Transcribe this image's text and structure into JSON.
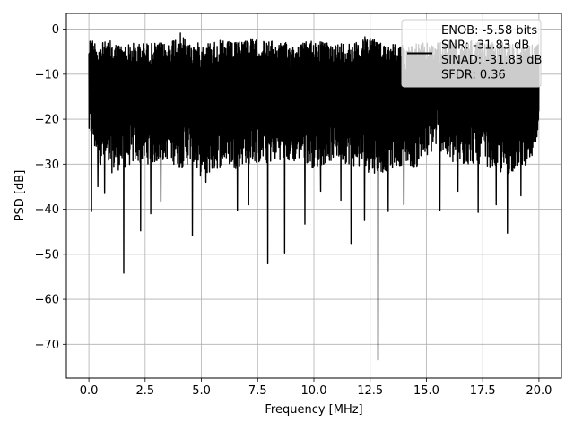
{
  "chart_data": {
    "type": "line",
    "title": "",
    "xlabel": "Frequency [MHz]",
    "ylabel": "PSD [dB]",
    "xlim": [
      -1,
      21
    ],
    "ylim": [
      -77.5,
      3.5
    ],
    "grid": true,
    "legend_position": "top-right",
    "x_ticks": [
      0.0,
      2.5,
      5.0,
      7.5,
      10.0,
      12.5,
      15.0,
      17.5,
      20.0
    ],
    "x_tick_labels": [
      "0.0",
      "2.5",
      "5.0",
      "7.5",
      "10.0",
      "12.5",
      "15.0",
      "17.5",
      "20.0"
    ],
    "y_ticks": [
      0,
      -10,
      -20,
      -30,
      -40,
      -50,
      -60,
      -70
    ],
    "y_tick_labels": [
      "0",
      "−10",
      "−20",
      "−30",
      "−40",
      "−50",
      "−60",
      "−70"
    ],
    "series": [
      {
        "name": "",
        "color": "#000000",
        "x_range": [
          0,
          20
        ],
        "envelope_top": [
          [
            0.0,
            -1.5
          ],
          [
            0.5,
            -3.0
          ],
          [
            1.0,
            -2.5
          ],
          [
            1.5,
            -3.5
          ],
          [
            2.0,
            -3.0
          ],
          [
            2.5,
            -3.0
          ],
          [
            3.0,
            -3.0
          ],
          [
            3.5,
            -3.0
          ],
          [
            4.0,
            -0.5
          ],
          [
            4.5,
            -3.0
          ],
          [
            5.0,
            -3.0
          ],
          [
            5.5,
            -2.5
          ],
          [
            6.0,
            -2.5
          ],
          [
            6.5,
            -3.0
          ],
          [
            7.0,
            -1.5
          ],
          [
            7.5,
            -2.5
          ],
          [
            8.0,
            -2.5
          ],
          [
            8.5,
            -3.0
          ],
          [
            9.0,
            -3.0
          ],
          [
            9.5,
            -3.0
          ],
          [
            10.0,
            -2.0
          ],
          [
            10.5,
            -3.0
          ],
          [
            11.0,
            -3.0
          ],
          [
            11.5,
            -2.5
          ],
          [
            12.0,
            -3.0
          ],
          [
            12.2,
            -0.5
          ],
          [
            12.5,
            -1.0
          ],
          [
            13.0,
            -3.0
          ],
          [
            13.5,
            -3.0
          ],
          [
            14.0,
            -3.5
          ],
          [
            14.5,
            -3.0
          ],
          [
            15.0,
            -3.0
          ],
          [
            15.5,
            -3.0
          ],
          [
            16.0,
            -2.5
          ],
          [
            16.5,
            -3.5
          ],
          [
            17.0,
            -2.0
          ],
          [
            17.5,
            -3.0
          ],
          [
            18.0,
            -3.0
          ],
          [
            18.5,
            -3.0
          ],
          [
            19.0,
            -3.0
          ],
          [
            19.5,
            -3.0
          ],
          [
            20.0,
            -3.0
          ]
        ],
        "envelope_bottom": [
          [
            0.0,
            -25.0
          ],
          [
            0.5,
            -30.0
          ],
          [
            1.0,
            -32.0
          ],
          [
            1.5,
            -31.0
          ],
          [
            2.0,
            -30.0
          ],
          [
            2.5,
            -30.0
          ],
          [
            3.0,
            -30.0
          ],
          [
            3.5,
            -29.0
          ],
          [
            4.0,
            -31.0
          ],
          [
            4.5,
            -30.0
          ],
          [
            5.0,
            -33.0
          ],
          [
            5.5,
            -32.0
          ],
          [
            6.0,
            -30.0
          ],
          [
            6.5,
            -31.0
          ],
          [
            7.0,
            -30.0
          ],
          [
            7.5,
            -30.0
          ],
          [
            8.0,
            -30.0
          ],
          [
            8.5,
            -29.0
          ],
          [
            9.0,
            -30.0
          ],
          [
            9.5,
            -29.0
          ],
          [
            10.0,
            -31.0
          ],
          [
            10.5,
            -30.0
          ],
          [
            11.0,
            -29.0
          ],
          [
            11.5,
            -30.0
          ],
          [
            12.0,
            -31.0
          ],
          [
            12.5,
            -32.0
          ],
          [
            13.0,
            -32.0
          ],
          [
            13.5,
            -31.0
          ],
          [
            14.0,
            -30.0
          ],
          [
            14.5,
            -31.0
          ],
          [
            15.0,
            -29.0
          ],
          [
            15.5,
            -26.0
          ],
          [
            16.0,
            -30.0
          ],
          [
            16.5,
            -31.0
          ],
          [
            17.0,
            -30.0
          ],
          [
            17.5,
            -30.0
          ],
          [
            18.0,
            -31.0
          ],
          [
            18.5,
            -33.0
          ],
          [
            19.0,
            -31.0
          ],
          [
            19.5,
            -30.0
          ],
          [
            20.0,
            -27.0
          ]
        ],
        "dips": [
          [
            0.12,
            -40.5
          ],
          [
            0.4,
            -35.0
          ],
          [
            0.7,
            -36.5
          ],
          [
            1.55,
            -54.2
          ],
          [
            2.3,
            -44.8
          ],
          [
            2.75,
            -41.0
          ],
          [
            3.2,
            -38.2
          ],
          [
            4.6,
            -45.9
          ],
          [
            5.2,
            -34.0
          ],
          [
            6.6,
            -40.3
          ],
          [
            7.1,
            -39.0
          ],
          [
            7.95,
            -52.1
          ],
          [
            8.7,
            -49.7
          ],
          [
            9.6,
            -43.3
          ],
          [
            10.3,
            -36.0
          ],
          [
            11.2,
            -38.0
          ],
          [
            11.65,
            -47.6
          ],
          [
            12.25,
            -42.5
          ],
          [
            12.85,
            -73.5
          ],
          [
            13.3,
            -40.5
          ],
          [
            14.0,
            -39.0
          ],
          [
            15.6,
            -40.3
          ],
          [
            16.4,
            -36.0
          ],
          [
            17.3,
            -40.7
          ],
          [
            18.1,
            -39.0
          ],
          [
            18.6,
            -45.3
          ],
          [
            19.2,
            -37.0
          ]
        ]
      }
    ],
    "legend": {
      "lines": [
        "ENOB: -5.58 bits",
        "SNR: -31.83 dB",
        "SINAD: -31.83 dB",
        "SFDR: 0.36"
      ]
    }
  }
}
